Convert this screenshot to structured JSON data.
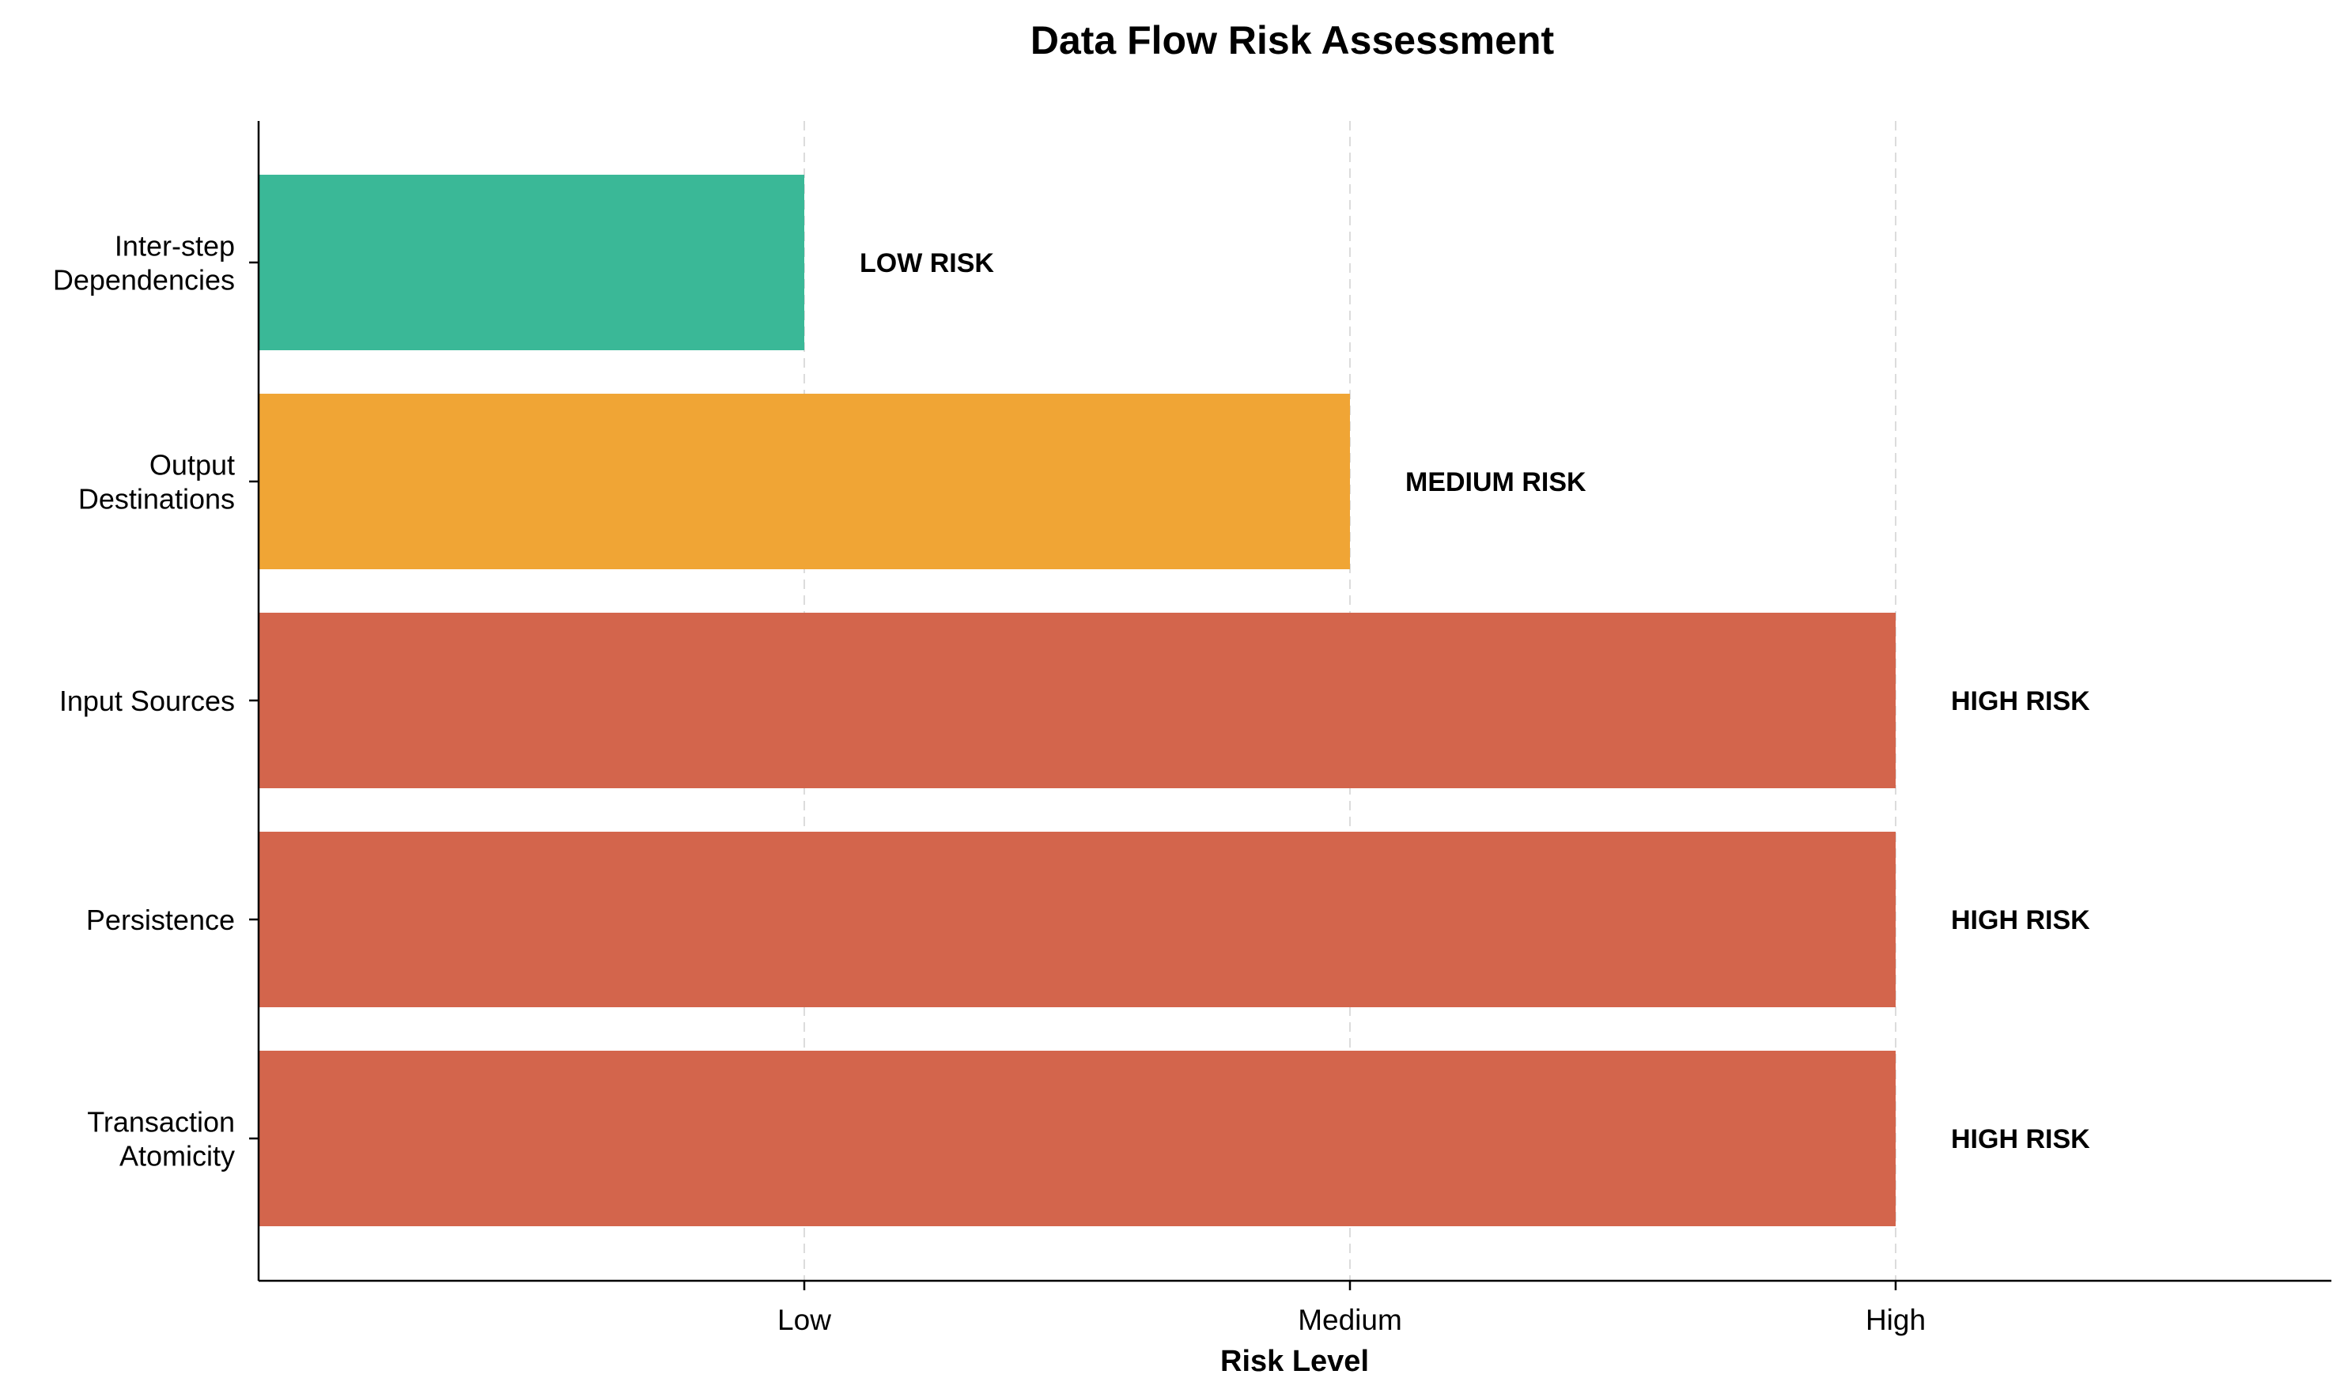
{
  "chart_data": {
    "type": "bar",
    "orientation": "horizontal",
    "title": "Data Flow Risk Assessment",
    "xlabel": "Risk Level",
    "ylabel": "",
    "x_ticks": [
      {
        "value": 1,
        "label": "Low"
      },
      {
        "value": 2,
        "label": "Medium"
      },
      {
        "value": 3,
        "label": "High"
      }
    ],
    "xlim": [
      0,
      3.8
    ],
    "grid": "vertical dashed",
    "categories": [
      {
        "lines": [
          "Inter-step",
          "Dependencies"
        ]
      },
      {
        "lines": [
          "Output",
          "Destinations"
        ]
      },
      {
        "lines": [
          "Input Sources"
        ]
      },
      {
        "lines": [
          "Persistence"
        ]
      },
      {
        "lines": [
          "Transaction",
          "Atomicity"
        ]
      }
    ],
    "values": [
      1,
      2,
      3,
      3,
      3
    ],
    "bar_labels": [
      "LOW RISK",
      "MEDIUM RISK",
      "HIGH RISK",
      "HIGH RISK",
      "HIGH RISK"
    ],
    "colors": [
      "#3ab897",
      "#f0a535",
      "#d3654c",
      "#d3654c",
      "#d3654c"
    ]
  }
}
